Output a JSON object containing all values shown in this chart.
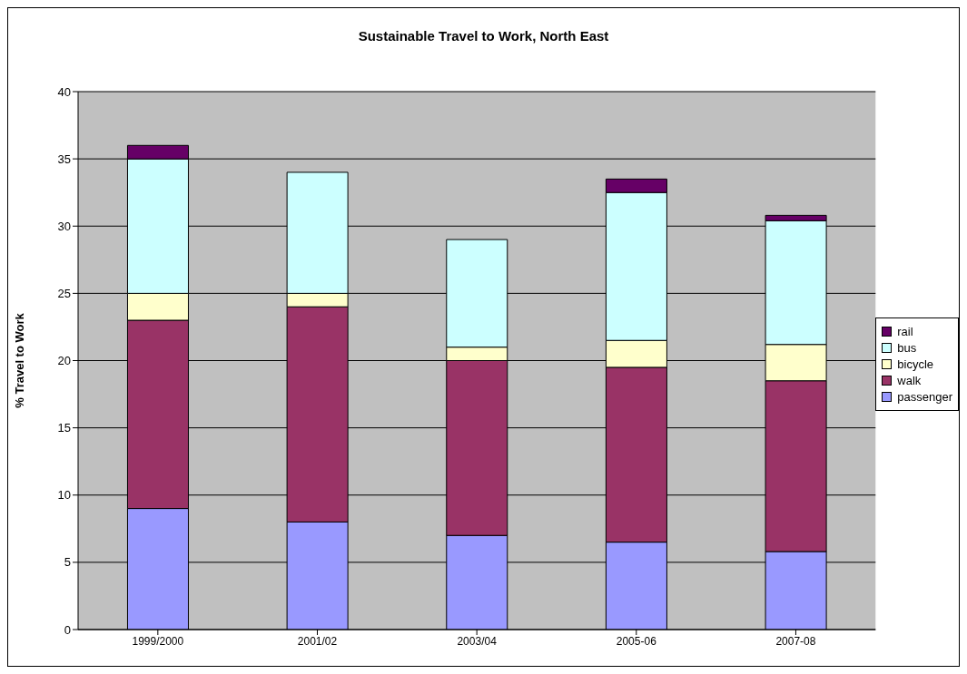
{
  "chart_data": {
    "type": "bar",
    "title": "Sustainable Travel to Work, North East",
    "ylabel": "% Travel to Work",
    "categories": [
      "1999/2000",
      "2001/02",
      "2003/04",
      "2005-06",
      "2007-08"
    ],
    "stacked": true,
    "series": [
      {
        "name": "passenger",
        "color": "#9999ff",
        "values": [
          9,
          8,
          7,
          6.5,
          5.8
        ]
      },
      {
        "name": "walk",
        "color": "#993366",
        "values": [
          14,
          16,
          13,
          13,
          12.7
        ]
      },
      {
        "name": "bicycle",
        "color": "#ffffcc",
        "values": [
          2,
          1,
          1,
          2,
          2.7
        ]
      },
      {
        "name": "bus",
        "color": "#ccffff",
        "values": [
          10,
          9,
          8,
          11,
          9.2
        ]
      },
      {
        "name": "rail",
        "color": "#660066",
        "values": [
          1,
          0,
          0,
          1,
          0.4
        ]
      }
    ],
    "ylim": [
      0,
      40
    ],
    "yticks": [
      0,
      5,
      10,
      15,
      20,
      25,
      30,
      35,
      40
    ],
    "grid": "y",
    "legend": "right"
  }
}
